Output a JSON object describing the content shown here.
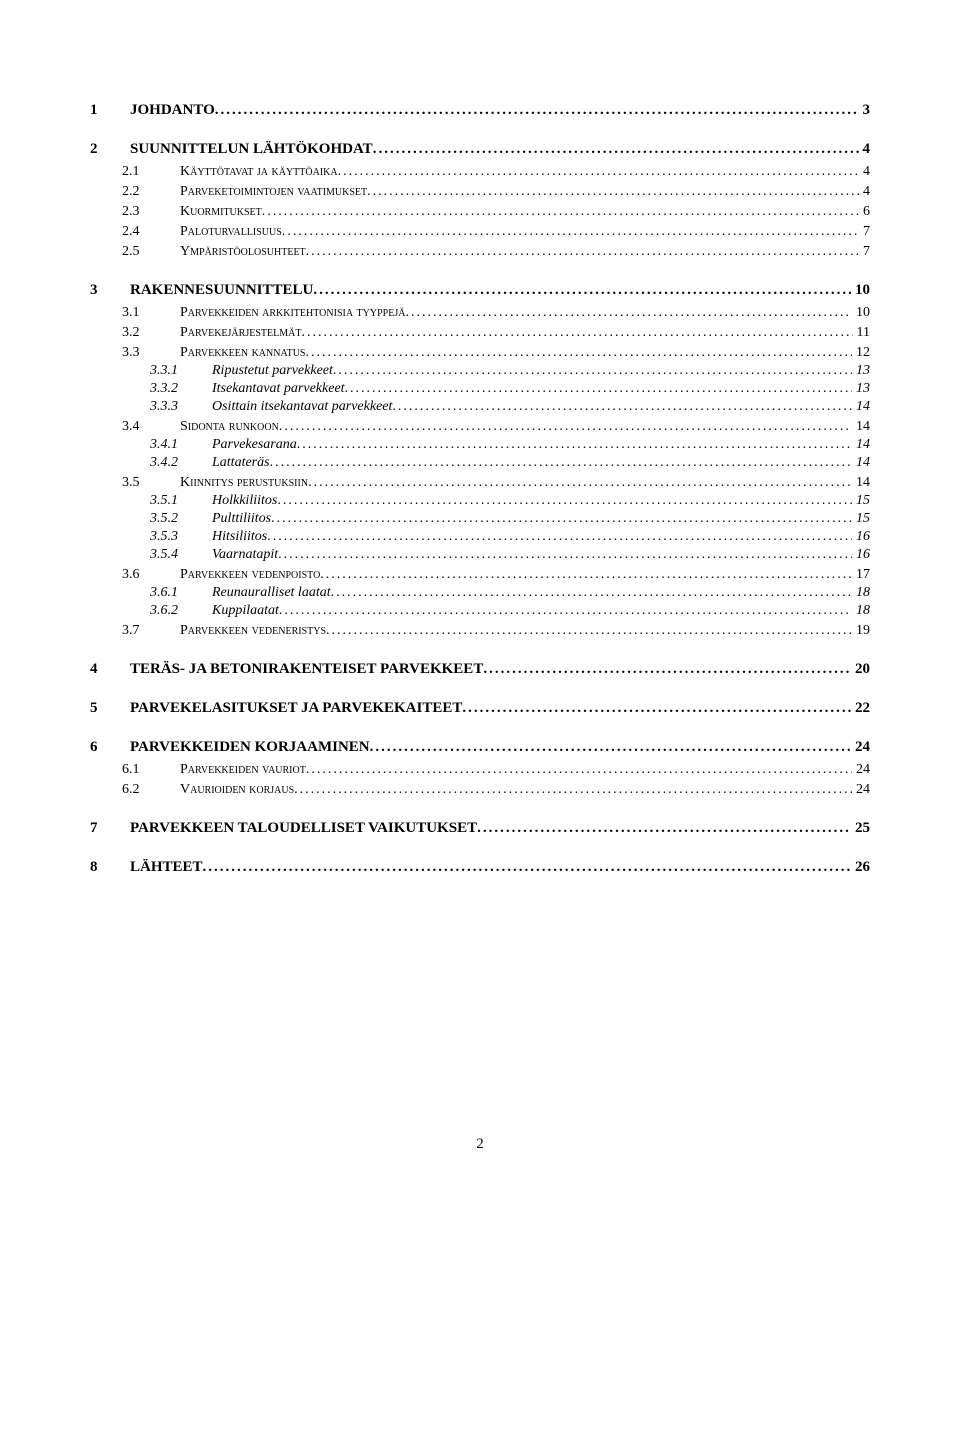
{
  "toc": [
    {
      "level": 1,
      "num": "1",
      "label": "JOHDANTO",
      "page": "3"
    },
    {
      "level": 1,
      "num": "2",
      "label": "SUUNNITTELUN LÄHTÖKOHDAT",
      "page": "4"
    },
    {
      "level": 2,
      "num": "2.1",
      "label": "Käyttötavat ja käyttöaika",
      "page": "4"
    },
    {
      "level": 2,
      "num": "2.2",
      "label": "Parveketoimintojen vaatimukset",
      "page": "4"
    },
    {
      "level": 2,
      "num": "2.3",
      "label": "Kuormitukset",
      "page": "6"
    },
    {
      "level": 2,
      "num": "2.4",
      "label": "Paloturvallisuus",
      "page": "7"
    },
    {
      "level": 2,
      "num": "2.5",
      "label": "Ympäristöolosuhteet",
      "page": "7"
    },
    {
      "level": 1,
      "num": "3",
      "label": "RAKENNESUUNNITTELU",
      "page": "10"
    },
    {
      "level": 2,
      "num": "3.1",
      "label": "Parvekkeiden arkkitehtonisia tyyppejä",
      "page": "10"
    },
    {
      "level": 2,
      "num": "3.2",
      "label": "Parvekejärjestelmät",
      "page": "11"
    },
    {
      "level": 2,
      "num": "3.3",
      "label": "Parvekkeen kannatus",
      "page": "12"
    },
    {
      "level": 3,
      "num": "3.3.1",
      "label": "Ripustetut parvekkeet",
      "page": "13"
    },
    {
      "level": 3,
      "num": "3.3.2",
      "label": "Itsekantavat parvekkeet",
      "page": "13"
    },
    {
      "level": 3,
      "num": "3.3.3",
      "label": "Osittain itsekantavat parvekkeet",
      "page": "14"
    },
    {
      "level": 2,
      "num": "3.4",
      "label": "Sidonta runkoon",
      "page": "14"
    },
    {
      "level": 3,
      "num": "3.4.1",
      "label": "Parvekesarana",
      "page": "14"
    },
    {
      "level": 3,
      "num": "3.4.2",
      "label": "Lattateräs",
      "page": "14"
    },
    {
      "level": 2,
      "num": "3.5",
      "label": "Kiinnitys perustuksiin",
      "page": "14"
    },
    {
      "level": 3,
      "num": "3.5.1",
      "label": "Holkkiliitos",
      "page": "15"
    },
    {
      "level": 3,
      "num": "3.5.2",
      "label": "Pulttiliitos",
      "page": "15"
    },
    {
      "level": 3,
      "num": "3.5.3",
      "label": "Hitsiliitos",
      "page": "16"
    },
    {
      "level": 3,
      "num": "3.5.4",
      "label": "Vaarnatapit",
      "page": "16"
    },
    {
      "level": 2,
      "num": "3.6",
      "label": "Parvekkeen vedenpoisto",
      "page": "17"
    },
    {
      "level": 3,
      "num": "3.6.1",
      "label": "Reunauralliset laatat",
      "page": "18"
    },
    {
      "level": 3,
      "num": "3.6.2",
      "label": "Kuppilaatat",
      "page": "18"
    },
    {
      "level": 2,
      "num": "3.7",
      "label": "Parvekkeen vedeneristys",
      "page": "19"
    },
    {
      "level": 1,
      "num": "4",
      "label": "TERÄS- JA BETONIRAKENTEISET PARVEKKEET",
      "page": "20"
    },
    {
      "level": 1,
      "num": "5",
      "label": "PARVEKELASITUKSET JA PARVEKEKAITEET",
      "page": "22"
    },
    {
      "level": 1,
      "num": "6",
      "label": "PARVEKKEIDEN KORJAAMINEN",
      "page": "24"
    },
    {
      "level": 2,
      "num": "6.1",
      "label": "Parvekkeiden vauriot",
      "page": "24"
    },
    {
      "level": 2,
      "num": "6.2",
      "label": "Vaurioiden korjaus",
      "page": "24"
    },
    {
      "level": 1,
      "num": "7",
      "label": "PARVEKKEEN TALOUDELLISET VAIKUTUKSET",
      "page": "25"
    },
    {
      "level": 1,
      "num": "8",
      "label": "LÄHTEET",
      "page": "26"
    }
  ],
  "footer_page": "2"
}
